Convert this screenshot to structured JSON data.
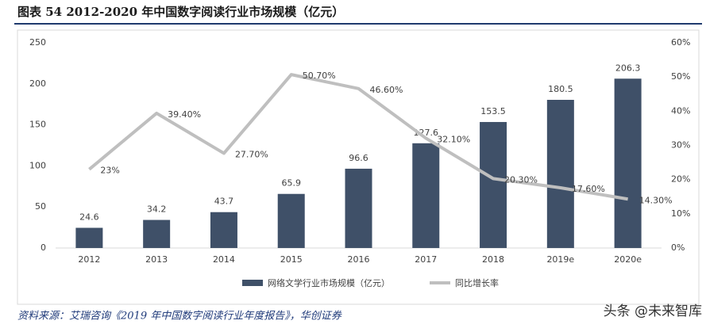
{
  "chart_data": {
    "type": "combo",
    "title": "图表 54   2012-2020 年中国数字阅读行业市场规模（亿元）",
    "categories": [
      "2012",
      "2013",
      "2014",
      "2015",
      "2016",
      "2017",
      "2018",
      "2019e",
      "2020e"
    ],
    "series": [
      {
        "name": "网络文学行业市场规模（亿元）",
        "type": "bar",
        "color": "#3f5068",
        "values": [
          24.6,
          34.2,
          43.7,
          65.9,
          96.6,
          127.6,
          153.5,
          180.5,
          206.3
        ]
      },
      {
        "name": "同比增长率",
        "type": "line",
        "axis": "y2",
        "color": "#bfbfbf",
        "values": [
          23,
          39.4,
          27.7,
          50.7,
          46.6,
          32.1,
          20.3,
          17.6,
          14.3
        ],
        "value_labels": [
          "23%",
          "39.40%",
          "27.70%",
          "50.70%",
          "46.60%",
          "32.10%",
          "20.30%",
          "17.60%",
          "14.30%"
        ]
      }
    ],
    "ylim": [
      0,
      250
    ],
    "yticks": [
      0,
      50,
      100,
      150,
      200,
      250
    ],
    "y2lim": [
      0,
      60
    ],
    "y2ticks": [
      {
        "value": 0,
        "label": "0%"
      },
      {
        "value": 10,
        "label": "10%"
      },
      {
        "value": 20,
        "label": "20%"
      },
      {
        "value": 30,
        "label": "30%"
      },
      {
        "value": 40,
        "label": "40%"
      },
      {
        "value": 50,
        "label": "50%"
      },
      {
        "value": 60,
        "label": "60%"
      }
    ],
    "legend": "bottom",
    "source": "资料来源：艾瑞咨询《2019 年中国数字阅读行业年度报告》，华创证券",
    "watermark": "头条 @未来智库"
  }
}
